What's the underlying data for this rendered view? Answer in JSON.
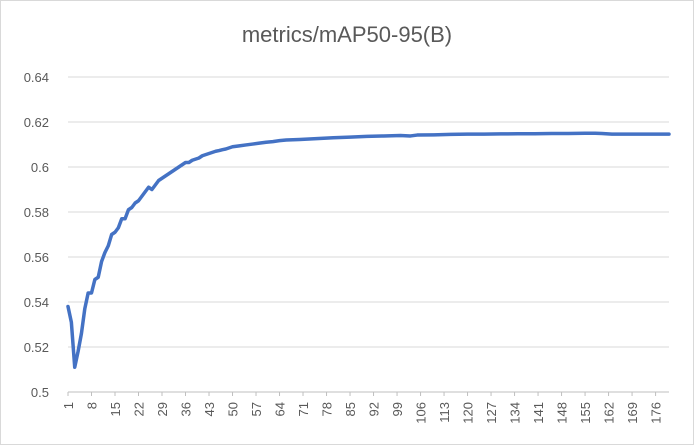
{
  "chart_data": {
    "type": "line",
    "title": "metrics/mAP50-95(B)",
    "xlabel": "",
    "ylabel": "",
    "ylim": [
      0.5,
      0.64
    ],
    "yticks": [
      "0.5",
      "0.52",
      "0.54",
      "0.56",
      "0.58",
      "0.6",
      "0.62",
      "0.64"
    ],
    "xticks": [
      "1",
      "8",
      "15",
      "22",
      "29",
      "36",
      "43",
      "50",
      "57",
      "64",
      "71",
      "78",
      "85",
      "92",
      "99",
      "106",
      "113",
      "120",
      "127",
      "134",
      "141",
      "148",
      "155",
      "162",
      "169",
      "176"
    ],
    "x_range": [
      1,
      180
    ],
    "grid": "horizontal",
    "legend": "none",
    "line_color": "#4472C4",
    "series": [
      {
        "name": "",
        "points": [
          [
            1,
            0.538
          ],
          [
            2,
            0.531
          ],
          [
            3,
            0.511
          ],
          [
            4,
            0.518
          ],
          [
            5,
            0.526
          ],
          [
            6,
            0.537
          ],
          [
            7,
            0.544
          ],
          [
            8,
            0.544
          ],
          [
            9,
            0.55
          ],
          [
            10,
            0.551
          ],
          [
            11,
            0.558
          ],
          [
            12,
            0.562
          ],
          [
            13,
            0.565
          ],
          [
            14,
            0.57
          ],
          [
            15,
            0.571
          ],
          [
            16,
            0.573
          ],
          [
            17,
            0.577
          ],
          [
            18,
            0.577
          ],
          [
            19,
            0.581
          ],
          [
            20,
            0.582
          ],
          [
            21,
            0.584
          ],
          [
            22,
            0.585
          ],
          [
            23,
            0.587
          ],
          [
            24,
            0.589
          ],
          [
            25,
            0.591
          ],
          [
            26,
            0.59
          ],
          [
            27,
            0.592
          ],
          [
            28,
            0.594
          ],
          [
            29,
            0.595
          ],
          [
            30,
            0.596
          ],
          [
            31,
            0.597
          ],
          [
            32,
            0.598
          ],
          [
            33,
            0.599
          ],
          [
            34,
            0.6
          ],
          [
            35,
            0.601
          ],
          [
            36,
            0.602
          ],
          [
            37,
            0.602
          ],
          [
            38,
            0.603
          ],
          [
            39,
            0.6035
          ],
          [
            40,
            0.604
          ],
          [
            41,
            0.605
          ],
          [
            42,
            0.6055
          ],
          [
            43,
            0.606
          ],
          [
            44,
            0.6065
          ],
          [
            45,
            0.607
          ],
          [
            46,
            0.6073
          ],
          [
            47,
            0.6077
          ],
          [
            48,
            0.608
          ],
          [
            49,
            0.6085
          ],
          [
            50,
            0.609
          ],
          [
            52,
            0.6094
          ],
          [
            54,
            0.6098
          ],
          [
            56,
            0.6102
          ],
          [
            58,
            0.6106
          ],
          [
            60,
            0.611
          ],
          [
            62,
            0.6113
          ],
          [
            64,
            0.6117
          ],
          [
            66,
            0.612
          ],
          [
            70,
            0.6122
          ],
          [
            75,
            0.6126
          ],
          [
            80,
            0.613
          ],
          [
            85,
            0.6133
          ],
          [
            90,
            0.6136
          ],
          [
            95,
            0.6138
          ],
          [
            100,
            0.614
          ],
          [
            103,
            0.6138
          ],
          [
            105,
            0.6142
          ],
          [
            110,
            0.6143
          ],
          [
            115,
            0.6145
          ],
          [
            120,
            0.6146
          ],
          [
            125,
            0.6146
          ],
          [
            130,
            0.6147
          ],
          [
            135,
            0.6148
          ],
          [
            140,
            0.6148
          ],
          [
            145,
            0.6149
          ],
          [
            150,
            0.6149
          ],
          [
            155,
            0.615
          ],
          [
            158,
            0.615
          ],
          [
            160,
            0.6149
          ],
          [
            163,
            0.6146
          ],
          [
            166,
            0.6146
          ],
          [
            170,
            0.6146
          ],
          [
            175,
            0.6146
          ],
          [
            180,
            0.6146
          ]
        ]
      }
    ]
  }
}
